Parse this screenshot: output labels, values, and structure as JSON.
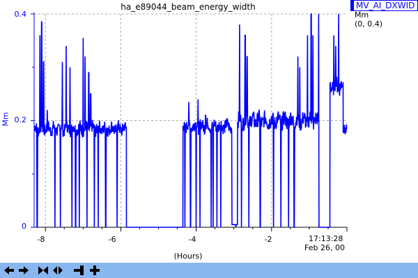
{
  "chart_data": {
    "type": "line",
    "title": "ha_e89044_beam_energy_width",
    "ylabel": "Mm",
    "xlabel": "(Hours)",
    "ylim": [
      0,
      0.4
    ],
    "xlim": [
      -8.3,
      0
    ],
    "y_ticks": [
      "0",
      "0.2",
      "0.4"
    ],
    "x_ticks": [
      {
        "value": -8,
        "label": "-8"
      },
      {
        "value": -6,
        "label": "-6"
      },
      {
        "value": -4,
        "label": "-4"
      },
      {
        "value": -2,
        "label": "-2"
      }
    ],
    "end_time": "17:13:28",
    "end_date": "Feb 26, 00",
    "grid": true,
    "series": [
      {
        "name": "MV_AI_DXWID",
        "color": "#0000ff",
        "segments": [
          {
            "from": -8.3,
            "to": -5.85,
            "kind": "noisy",
            "base": 0.185,
            "amp": 0.012
          },
          {
            "from": -5.85,
            "to": -4.35,
            "kind": "flat",
            "value": 0.0
          },
          {
            "from": -4.35,
            "to": -3.05,
            "kind": "noisy",
            "base": 0.19,
            "amp": 0.012
          },
          {
            "from": -3.05,
            "to": -2.9,
            "kind": "flat",
            "value": 0.005
          },
          {
            "from": -2.9,
            "to": -0.75,
            "kind": "noisy",
            "base": 0.2,
            "amp": 0.015
          },
          {
            "from": -0.75,
            "to": -0.45,
            "kind": "flat",
            "value": 0.0
          },
          {
            "from": -0.45,
            "to": -0.1,
            "kind": "noisy",
            "base": 0.265,
            "amp": 0.015
          },
          {
            "from": -0.1,
            "to": 0.0,
            "kind": "noisy",
            "base": 0.185,
            "amp": 0.01
          }
        ],
        "spikes": [
          {
            "x": -8.15,
            "y": 0.36
          },
          {
            "x": -8.1,
            "y": 0.385
          },
          {
            "x": -8.05,
            "y": 0.31
          },
          {
            "x": -7.95,
            "y": 0.22
          },
          {
            "x": -7.55,
            "y": 0.31
          },
          {
            "x": -7.45,
            "y": 0.34
          },
          {
            "x": -7.35,
            "y": 0.3
          },
          {
            "x": -7.0,
            "y": 0.355
          },
          {
            "x": -6.95,
            "y": 0.32
          },
          {
            "x": -6.85,
            "y": 0.29
          },
          {
            "x": -6.8,
            "y": 0.25
          },
          {
            "x": -4.2,
            "y": 0.235
          },
          {
            "x": -3.95,
            "y": 0.24
          },
          {
            "x": -3.75,
            "y": 0.21
          },
          {
            "x": -2.85,
            "y": 0.38
          },
          {
            "x": -2.7,
            "y": 0.36
          },
          {
            "x": -2.65,
            "y": 0.32
          },
          {
            "x": -1.3,
            "y": 0.32
          },
          {
            "x": -1.25,
            "y": 0.3
          },
          {
            "x": -1.05,
            "y": 0.36
          },
          {
            "x": -0.95,
            "y": 0.4
          },
          {
            "x": -0.9,
            "y": 0.36
          },
          {
            "x": -0.75,
            "y": 0.4
          },
          {
            "x": -0.35,
            "y": 0.36
          },
          {
            "x": -0.3,
            "y": 0.34
          },
          {
            "x": -0.22,
            "y": 0.4
          }
        ],
        "drops": [
          -8.22,
          -8.15,
          -8.05,
          -7.95,
          -7.75,
          -7.6,
          -7.45,
          -7.3,
          -7.2,
          -7.1,
          -7.0,
          -6.9,
          -6.8,
          -6.7,
          -6.6,
          -6.4,
          -6.1,
          -4.3,
          -4.15,
          -4.0,
          -3.9,
          -3.6,
          -3.55,
          -3.45,
          -3.35,
          -2.95,
          -2.8,
          -2.6,
          -2.3,
          -1.95,
          -1.75,
          -1.55,
          -1.4,
          -1.05,
          -0.9,
          -0.6,
          -0.5
        ]
      }
    ]
  },
  "legend": {
    "name": "MV_AI_DXWID",
    "units": "Mm",
    "range": "(0, 0.4)"
  },
  "toolbar": {
    "buttons": [
      {
        "name": "scroll-left-button",
        "icon": "arrow-left-icon"
      },
      {
        "name": "scroll-right-button",
        "icon": "arrow-right-icon"
      },
      {
        "name": "zoom-in-time-button",
        "icon": "bowtie-in-icon"
      },
      {
        "name": "zoom-out-time-button",
        "icon": "bowtie-out-icon"
      },
      {
        "name": "pan-bar-button",
        "icon": "bar-left-icon"
      },
      {
        "name": "zoom-in-button",
        "icon": "plus-icon"
      }
    ]
  }
}
